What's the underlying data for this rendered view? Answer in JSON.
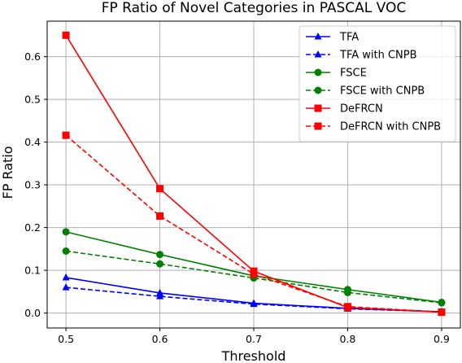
{
  "chart_data": {
    "type": "line",
    "title": "FP Ratio of Novel Categories in PASCAL VOC",
    "xlabel": "Threshold",
    "ylabel": "FP Ratio",
    "x": [
      0.5,
      0.6,
      0.7,
      0.8,
      0.9
    ],
    "x_ticks": [
      "0.5",
      "0.6",
      "0.7",
      "0.8",
      "0.9"
    ],
    "y_ticks": [
      "0.0",
      "0.1",
      "0.2",
      "0.3",
      "0.4",
      "0.5",
      "0.6"
    ],
    "xlim": [
      0.48,
      0.92
    ],
    "ylim": [
      -0.035,
      0.683
    ],
    "grid": true,
    "legend_position": "top-right",
    "series": [
      {
        "name": "TFA",
        "color": "#0000ff",
        "linestyle": "solid",
        "marker": "triangle",
        "values": [
          0.083,
          0.047,
          0.023,
          0.011,
          0.003
        ]
      },
      {
        "name": "TFA with CNPB",
        "color": "#0000ff",
        "linestyle": "dashed",
        "marker": "triangle",
        "values": [
          0.06,
          0.039,
          0.021,
          0.01,
          0.003
        ]
      },
      {
        "name": "FSCE",
        "color": "#008000",
        "linestyle": "solid",
        "marker": "circle",
        "values": [
          0.19,
          0.137,
          0.087,
          0.055,
          0.025
        ]
      },
      {
        "name": "FSCE with CNPB",
        "color": "#008000",
        "linestyle": "dashed",
        "marker": "circle",
        "values": [
          0.145,
          0.115,
          0.082,
          0.048,
          0.024
        ]
      },
      {
        "name": "DeFRCN",
        "color": "#ff0000",
        "linestyle": "solid",
        "marker": "square",
        "values": [
          0.65,
          0.291,
          0.098,
          0.013,
          0.002
        ]
      },
      {
        "name": "DeFRCN with CNPB",
        "color": "#ff0000",
        "linestyle": "dashed",
        "marker": "square",
        "values": [
          0.416,
          0.227,
          0.091,
          0.015,
          0.002
        ]
      }
    ]
  }
}
